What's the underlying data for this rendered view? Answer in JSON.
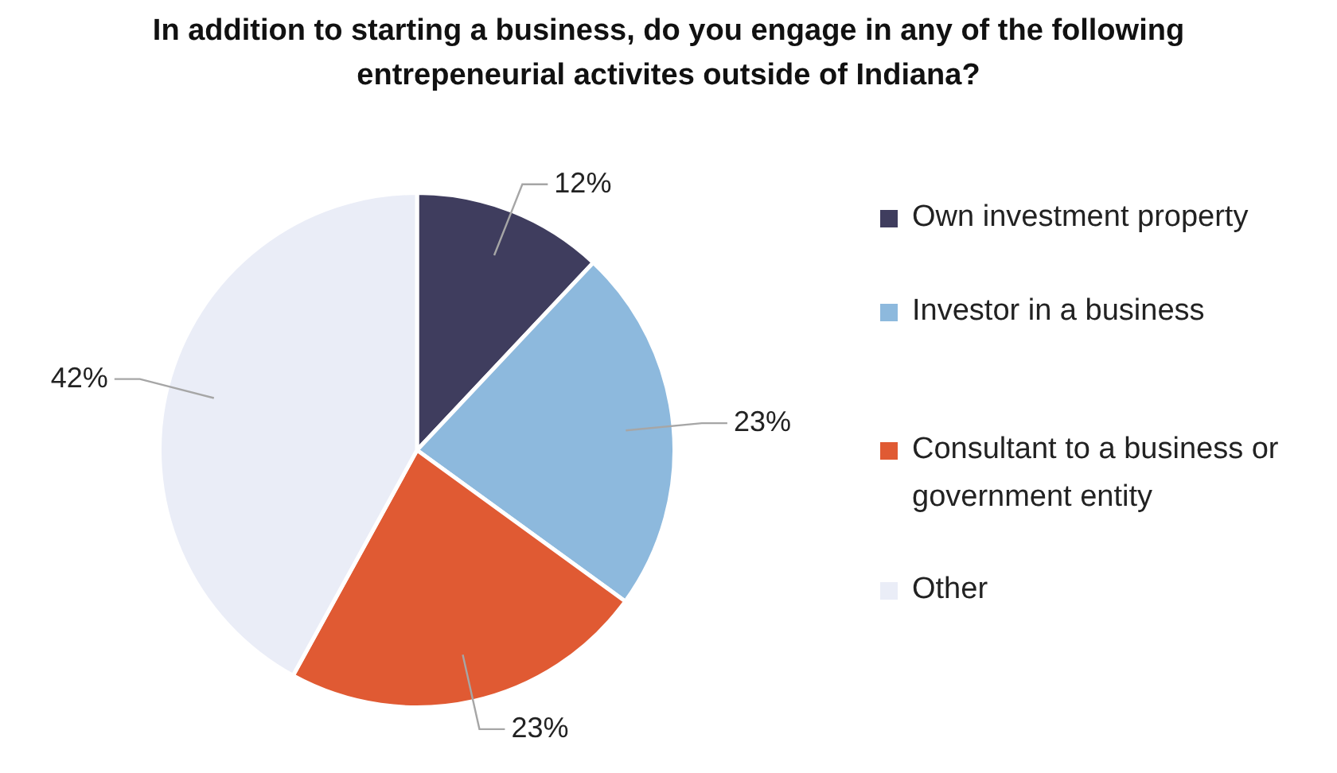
{
  "chart_data": {
    "type": "pie",
    "title": "In addition to starting a business, do you engage in any of the following entrepeneurial activites outside of Indiana?",
    "categories": [
      "Own investment property",
      "Investor in a business",
      "Consultant to a business or government entity",
      "Other"
    ],
    "values": [
      12,
      23,
      23,
      42
    ],
    "colors": [
      "#3f3d5e",
      "#8db9dd",
      "#e05a33",
      "#eaedf7"
    ],
    "value_labels": [
      "12%",
      "23%",
      "23%",
      "42%"
    ],
    "legend": "right"
  }
}
